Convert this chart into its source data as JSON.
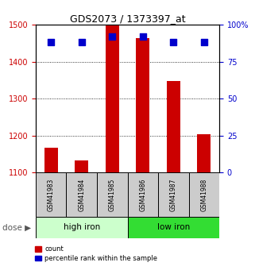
{
  "title": "GDS2073 / 1373397_at",
  "samples": [
    "GSM41983",
    "GSM41984",
    "GSM41985",
    "GSM41986",
    "GSM41987",
    "GSM41988"
  ],
  "bar_values": [
    1168,
    1133,
    1500,
    1463,
    1347,
    1204
  ],
  "percentile_values": [
    88,
    88,
    92,
    92,
    88,
    88
  ],
  "bar_baseline": 1100,
  "ylim_left": [
    1100,
    1500
  ],
  "ylim_right": [
    0,
    100
  ],
  "yticks_left": [
    1100,
    1200,
    1300,
    1400,
    1500
  ],
  "yticks_right": [
    0,
    25,
    50,
    75,
    100
  ],
  "bar_color": "#cc0000",
  "percentile_color": "#0000cc",
  "group_labels": [
    "high iron",
    "low iron"
  ],
  "group_colors_left": [
    "#ccffcc",
    "#33dd33"
  ],
  "dose_label": "dose",
  "legend_count": "count",
  "legend_percentile": "percentile rank within the sample",
  "bar_width": 0.45,
  "marker_size": 28,
  "left_tick_color": "#cc0000",
  "right_tick_color": "#0000cc",
  "sample_box_color": "#cccccc",
  "tick_fontsize": 7,
  "title_fontsize": 9
}
